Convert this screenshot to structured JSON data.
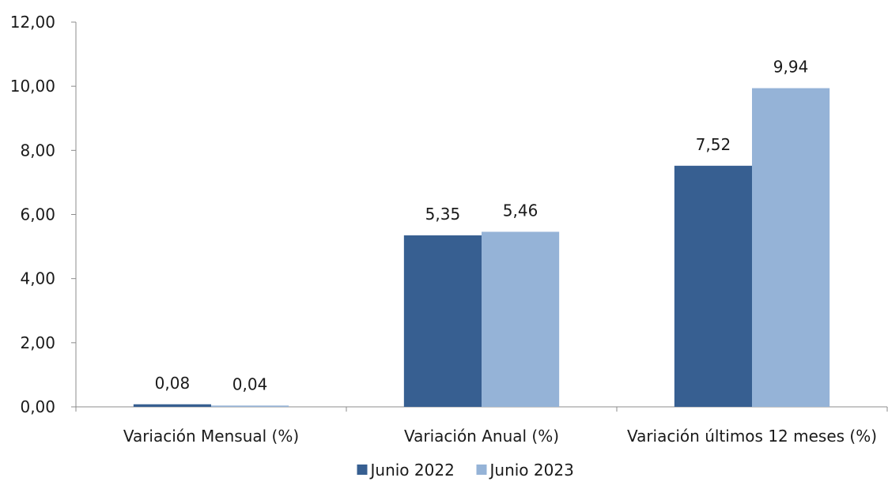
{
  "chart_data": {
    "type": "bar",
    "title": "",
    "xlabel": "",
    "ylabel": "",
    "categories": [
      "Variación Mensual (%)",
      "Variación  Anual (%)",
      "Variación últimos 12 meses (%)"
    ],
    "series": [
      {
        "name": "Junio 2022",
        "values": [
          0.08,
          5.35,
          7.52
        ],
        "labels": [
          "0,08",
          "5,35",
          "7,52"
        ],
        "color": "#375F91"
      },
      {
        "name": "Junio 2023",
        "values": [
          0.04,
          5.46,
          9.94
        ],
        "labels": [
          "0,04",
          "5,46",
          "9,94"
        ],
        "color": "#95B3D7"
      }
    ],
    "ylim": [
      0,
      12
    ],
    "yticks": [
      0,
      2,
      4,
      6,
      8,
      10,
      12
    ],
    "ytick_labels": [
      "0,00",
      "2,00",
      "4,00",
      "6,00",
      "8,00",
      "10,00",
      "12,00"
    ],
    "grid": false,
    "legend_position": "bottom"
  }
}
